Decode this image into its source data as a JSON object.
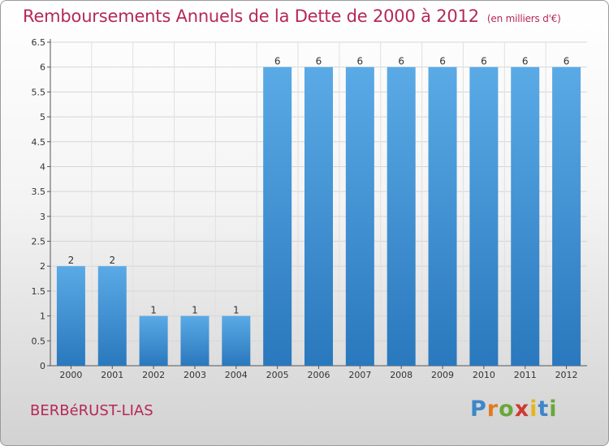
{
  "title": "Remboursements Annuels de la Dette de 2000 à 2012",
  "unit": "(en milliers d'€)",
  "commune": "BERBéRUST-LIAS",
  "brand": {
    "letters": [
      "P",
      "r",
      "o",
      "x",
      "i",
      "t",
      "i"
    ],
    "colors": [
      "#3d87c9",
      "#e07b1f",
      "#68a83a",
      "#d0392f",
      "#e6b619",
      "#3d87c9",
      "#68a83a"
    ]
  },
  "colors": {
    "bar": "#3a8fd4",
    "bar_light": "#5aaae6",
    "bar_dark": "#2a78bd",
    "title": "#b5285a"
  },
  "chart_data": {
    "type": "bar",
    "categories": [
      "2000",
      "2001",
      "2002",
      "2003",
      "2004",
      "2005",
      "2006",
      "2007",
      "2008",
      "2009",
      "2010",
      "2011",
      "2012"
    ],
    "values": [
      2,
      2,
      1,
      1,
      1,
      6,
      6,
      6,
      6,
      6,
      6,
      6,
      6
    ],
    "data_labels": [
      "2",
      "2",
      "1",
      "1",
      "1",
      "6",
      "6",
      "6",
      "6",
      "6",
      "6",
      "6",
      "6"
    ],
    "ylim": [
      0,
      6.5
    ],
    "yticks": [
      "0",
      "0.5",
      "1",
      "1.5",
      "2",
      "2.5",
      "3",
      "3.5",
      "4",
      "4.5",
      "5",
      "5.5",
      "6",
      "6.5"
    ],
    "grid": true
  }
}
